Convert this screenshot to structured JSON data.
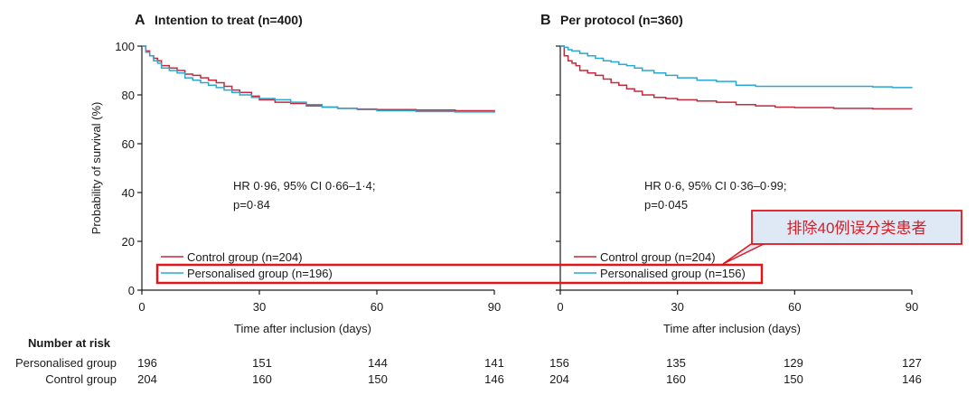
{
  "chart_data": [
    {
      "type": "line",
      "panel": "A",
      "title": "Intention to treat (n=400)",
      "xlabel": "Time after inclusion (days)",
      "ylabel": "Probability of survival (%)",
      "xlim": [
        0,
        90
      ],
      "ylim": [
        0,
        100
      ],
      "xticks": [
        0,
        30,
        60,
        90
      ],
      "yticks": [
        0,
        20,
        40,
        60,
        80,
        100
      ],
      "annotation": [
        "HR 0·96, 95% CI 0·66–1·4;",
        "p=0·84"
      ],
      "legend_placement": "bottom-left",
      "series": [
        {
          "name": "Control group (n=204)",
          "color": "#c8283c",
          "step": true,
          "x": [
            0,
            1,
            2,
            3,
            4,
            5,
            7,
            9,
            11,
            13,
            15,
            17,
            19,
            21,
            23,
            25,
            28,
            30,
            34,
            38,
            42,
            46,
            50,
            55,
            60,
            65,
            70,
            80,
            90
          ],
          "y": [
            100,
            98,
            96,
            95,
            94,
            92,
            91,
            90,
            88.5,
            88,
            87,
            86,
            85,
            83.5,
            82,
            81,
            79.5,
            78,
            77,
            76.5,
            75.5,
            75,
            74.5,
            74.2,
            74,
            74,
            73.8,
            73.5,
            73
          ]
        },
        {
          "name": "Personalised group (n=196)",
          "color": "#2aa8d0",
          "step": true,
          "x": [
            0,
            1,
            2,
            3,
            4,
            5,
            7,
            9,
            11,
            13,
            15,
            17,
            19,
            21,
            23,
            25,
            28,
            30,
            34,
            38,
            42,
            46,
            50,
            55,
            60,
            65,
            70,
            80,
            90
          ],
          "y": [
            100,
            97.5,
            96,
            94,
            93,
            91,
            90,
            89,
            87,
            86,
            85,
            84,
            83,
            82,
            81,
            80,
            79,
            78.5,
            78,
            77,
            76,
            75,
            74.5,
            74,
            73.5,
            73.5,
            73.2,
            73,
            72.7
          ]
        }
      ]
    },
    {
      "type": "line",
      "panel": "B",
      "title": "Per protocol (n=360)",
      "xlabel": "Time after inclusion (days)",
      "xlim": [
        0,
        90
      ],
      "ylim": [
        0,
        100
      ],
      "xticks": [
        0,
        30,
        60,
        90
      ],
      "yticks": [
        0,
        20,
        40,
        60,
        80,
        100
      ],
      "annotation": [
        "HR 0·6, 95% CI 0·36–0·99;",
        "p=0·045"
      ],
      "legend_placement": "bottom-left",
      "series": [
        {
          "name": "Control group (n=204)",
          "color": "#c8283c",
          "step": true,
          "x": [
            0,
            1,
            2,
            3,
            4,
            5,
            7,
            9,
            11,
            13,
            15,
            17,
            19,
            21,
            24,
            27,
            30,
            35,
            40,
            45,
            50,
            55,
            60,
            70,
            80,
            90
          ],
          "y": [
            100,
            96,
            94,
            93,
            92,
            90,
            89,
            88,
            86.5,
            85,
            84,
            82.5,
            81.5,
            80,
            79,
            78.5,
            78,
            77.5,
            77,
            76,
            75.5,
            75,
            74.8,
            74.5,
            74.3,
            74.2
          ]
        },
        {
          "name": "Personalised group (n=156)",
          "color": "#2aa8d0",
          "step": true,
          "x": [
            0,
            1,
            2,
            3,
            5,
            7,
            9,
            11,
            13,
            15,
            17,
            19,
            21,
            24,
            27,
            30,
            35,
            40,
            45,
            50,
            55,
            60,
            70,
            80,
            85,
            90
          ],
          "y": [
            100,
            99.5,
            98.5,
            98,
            97,
            96,
            95,
            94,
            93.5,
            92.5,
            92,
            91,
            90,
            89,
            88,
            87,
            86,
            85.5,
            84,
            83.5,
            83.5,
            83.5,
            83.5,
            83.3,
            83,
            82.8
          ]
        }
      ]
    }
  ],
  "risk_table": {
    "title": "Number at risk",
    "groups": [
      {
        "label": "Personalised group",
        "A": [
          196,
          151,
          144,
          141
        ],
        "B": [
          156,
          135,
          129,
          127
        ]
      },
      {
        "label": "Control group",
        "A": [
          204,
          160,
          150,
          146
        ],
        "B": [
          204,
          160,
          150,
          146
        ]
      }
    ]
  },
  "callout": {
    "text": "排除40例误分类患者",
    "border_color": "#e2151b",
    "fill_color": "#dfe9f5"
  }
}
